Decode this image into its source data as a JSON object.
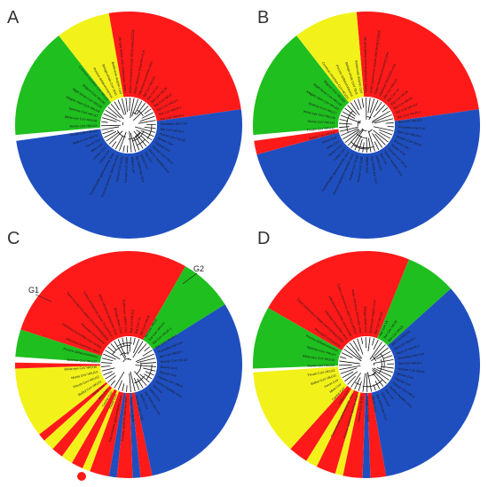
{
  "colors": {
    "red": "#ff1a1a",
    "blue": "#1f4fbf",
    "green": "#1fbf1f",
    "yellow": "#f2f21a",
    "tree": "#111111"
  },
  "panels": [
    {
      "label": "A",
      "sectors": [
        {
          "from": -10,
          "to": 82,
          "color": "red"
        },
        {
          "from": 82,
          "to": 262,
          "color": "blue"
        },
        {
          "from": 265,
          "to": 322,
          "color": "green"
        },
        {
          "from": 322,
          "to": 350,
          "color": "yellow"
        },
        {
          "from": 350,
          "to": 352,
          "color": "red"
        }
      ],
      "leaves": [
        "Turkey coronavirus virus isolate NJ0-del",
        "Avian coronavirus isolate DK/CH/HN/ZZ2004",
        "Avian infectious bronchitis virus",
        "Infectious bronchitis virus",
        "Bat CoV HKU16",
        "Bat CoV 1A",
        "Bat CoV HKU8",
        "Bat CoV HKU2",
        "Bat CoV HKU14",
        "Bat CoV HKU5-1",
        "Bat CoV HKU4-1",
        "Rousettus bat CoV",
        "Bat CoV HKU9-1",
        "Human CoV OC43",
        "Bovine CoV",
        "Equine CoV",
        "Human CoV HKU1",
        "Murine hepatitis virus",
        "Rat CoV",
        "SARS-CoV",
        "Bat SARS-like CoV",
        "MERS-CoV",
        "Human CoV 229E",
        "Human CoV NL63",
        "Porcine epidemic diarrhea virus",
        "Transmissible gastroenteritis virus",
        "Feline CoV",
        "Canine CoV",
        "Mink CoV",
        "Ferret CoV",
        "Bulbul CoV HKU11",
        "Thrush CoV HKU12",
        "Munia CoV HKU13",
        "White-eye CoV HKU16",
        "Sparrow CoV HKU17",
        "Magpie robin CoV HKU18",
        "Night heron CoV HKU19",
        "Wigeon CoV HKU20",
        "Common moorhen CoV HKU21",
        "Porcine deltacoronavirus",
        "Beluga whale CoV SW1",
        "Bottlenose dolphin CoV"
      ]
    },
    {
      "label": "B",
      "sectors": [
        {
          "from": -5,
          "to": 82,
          "color": "red"
        },
        {
          "from": 82,
          "to": 255,
          "color": "blue"
        },
        {
          "from": 255,
          "to": 262,
          "color": "red"
        },
        {
          "from": 265,
          "to": 322,
          "color": "green"
        },
        {
          "from": 322,
          "to": 355,
          "color": "yellow"
        }
      ],
      "leaves": [
        "Turkey coronavirus virus isolate NJ0-del",
        "Avian coronavirus isolate DK/CH/HN/ZZ2004",
        "Avian infectious bronchitis virus",
        "Infectious bronchitis virus",
        "Bat CoV HKU16",
        "Bat CoV 1A",
        "Bat CoV HKU8",
        "Bat CoV HKU2",
        "Bat CoV HKU14",
        "Bat CoV HKU5-1",
        "Bat CoV HKU4-1",
        "Rousettus bat CoV",
        "Bat CoV HKU9-1",
        "Human CoV OC43",
        "Bovine CoV",
        "Equine CoV",
        "Human CoV HKU1",
        "Murine hepatitis virus",
        "Rat CoV",
        "SARS-CoV",
        "Bat SARS-like CoV",
        "MERS-CoV",
        "Human CoV 229E",
        "Human CoV NL63",
        "Porcine epidemic diarrhea virus",
        "Transmissible gastroenteritis virus",
        "Feline CoV",
        "Canine CoV",
        "Mink CoV",
        "Ferret CoV",
        "Bulbul CoV HKU11",
        "Thrush CoV HKU12",
        "Munia CoV HKU13",
        "White-eye CoV HKU16",
        "Sparrow CoV HKU17",
        "Magpie robin CoV HKU18",
        "Night heron CoV HKU19",
        "Wigeon CoV HKU20",
        "Common moorhen CoV HKU21",
        "Porcine deltacoronavirus",
        "Beluga whale CoV SW1",
        "Bottlenose dolphin CoV"
      ]
    },
    {
      "label": "C",
      "group_labels": [
        "G1",
        "G2"
      ],
      "sectors": [
        {
          "from": 288,
          "to": 390,
          "color": "red"
        },
        {
          "from": 30,
          "to": 58,
          "color": "green"
        },
        {
          "from": 58,
          "to": 168,
          "color": "blue"
        },
        {
          "from": 168,
          "to": 174,
          "color": "red"
        },
        {
          "from": 174,
          "to": 178,
          "color": "blue"
        },
        {
          "from": 178,
          "to": 186,
          "color": "red"
        },
        {
          "from": 186,
          "to": 190,
          "color": "blue"
        },
        {
          "from": 190,
          "to": 200,
          "color": "red"
        },
        {
          "from": 200,
          "to": 204,
          "color": "yellow"
        },
        {
          "from": 204,
          "to": 210,
          "color": "red"
        },
        {
          "from": 210,
          "to": 216,
          "color": "yellow"
        },
        {
          "from": 216,
          "to": 222,
          "color": "red"
        },
        {
          "from": 222,
          "to": 228,
          "color": "yellow"
        },
        {
          "from": 228,
          "to": 232,
          "color": "red"
        },
        {
          "from": 232,
          "to": 268,
          "color": "yellow"
        },
        {
          "from": 268,
          "to": 271,
          "color": "red"
        },
        {
          "from": 274,
          "to": 288,
          "color": "green"
        }
      ],
      "leaves": [
        "Infectious bronchitis virus",
        "Infectious bronchitis virus isolate",
        "Pheasant coronavirus",
        "Duck coronavirus isolate DK/CH/HN/ZZ2004",
        "Turkey coronavirus strain TCoV/ATCC",
        "Avian infectious bronchitis virus",
        "Beluga whale CoV",
        "Bottlenose dolphin CoV",
        "Bat CoV HKU16",
        "Bat CoV 1A",
        "Bat CoV HKU8",
        "Bat CoV HKU2",
        "Bat CoV HKU14",
        "Bat CoV HKU5-1",
        "Bat CoV HKU4-1",
        "Rousettus bat CoV",
        "Bat CoV HKU9-1",
        "Human CoV OC43",
        "Bovine CoV",
        "Equine CoV",
        "Human CoV HKU1",
        "Murine hepatitis virus",
        "Rat CoV",
        "SARS-CoV",
        "Bat SARS-like CoV",
        "MERS-CoV",
        "Human CoV 229E",
        "Human CoV NL63",
        "Porcine epidemic diarrhea virus",
        "Transmissible gastroenteritis virus",
        "Feline CoV",
        "Canine CoV",
        "Mink CoV",
        "Ferret CoV",
        "Bulbul CoV HKU11",
        "Thrush CoV HKU12",
        "Munia CoV HKU13",
        "White-eye CoV HKU16",
        "Sparrow CoV HKU17",
        "Porcine deltacoronavirus"
      ]
    },
    {
      "label": "D",
      "sectors": [
        {
          "from": 300,
          "to": 382,
          "color": "red"
        },
        {
          "from": 22,
          "to": 48,
          "color": "green"
        },
        {
          "from": 48,
          "to": 170,
          "color": "blue"
        },
        {
          "from": 170,
          "to": 178,
          "color": "red"
        },
        {
          "from": 178,
          "to": 182,
          "color": "blue"
        },
        {
          "from": 182,
          "to": 192,
          "color": "red"
        },
        {
          "from": 192,
          "to": 196,
          "color": "yellow"
        },
        {
          "from": 196,
          "to": 206,
          "color": "red"
        },
        {
          "from": 206,
          "to": 212,
          "color": "yellow"
        },
        {
          "from": 212,
          "to": 222,
          "color": "red"
        },
        {
          "from": 222,
          "to": 266,
          "color": "yellow"
        },
        {
          "from": 268,
          "to": 300,
          "color": "green"
        }
      ],
      "leaves": [
        "Pheasant coronavirus",
        "Duck coronavirus isolate DK/CH/HN/ZZ2004",
        "Infectious bronchitis virus",
        "Infectious bronchitis virus isolate",
        "Turkey coronavirus strain TCoV/ATCC",
        "Avian infectious bronchitis virus",
        "Beluga whale CoV",
        "Bottlenose dolphin CoV",
        "Bat CoV HKU16",
        "Bat CoV 1A",
        "Bat CoV HKU8",
        "Bat CoV HKU2",
        "Bat CoV HKU14",
        "Bat CoV HKU5-1",
        "Bat CoV HKU4-1",
        "Rousettus bat CoV",
        "Bat CoV HKU9-1",
        "Human CoV OC43",
        "Bovine CoV",
        "Equine CoV",
        "Human CoV HKU1",
        "Murine hepatitis virus",
        "Rat CoV",
        "SARS-CoV",
        "Bat SARS-like CoV",
        "MERS-CoV",
        "Human CoV 229E",
        "Human CoV NL63",
        "Porcine epidemic diarrhea virus",
        "Transmissible gastroenteritis virus",
        "Feline CoV",
        "Canine CoV",
        "Mink CoV",
        "Ferret CoV",
        "Bulbul CoV HKU11",
        "Thrush CoV HKU12",
        "Munia CoV HKU13",
        "White-eye CoV HKU16",
        "Sparrow CoV HKU17",
        "Porcine deltacoronavirus"
      ]
    }
  ]
}
